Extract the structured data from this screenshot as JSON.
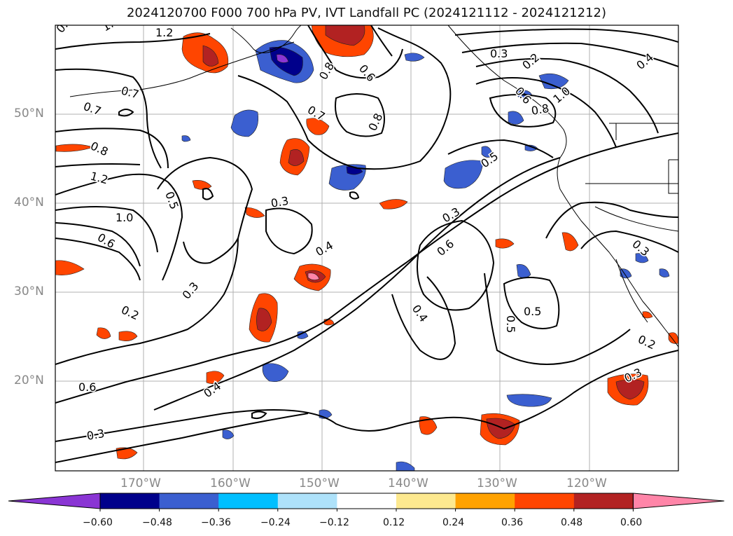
{
  "title": "2024120700 F000 700 hPa PV, IVT Landfall PC (2024121112 - 2024121212)",
  "map": {
    "lat_labels": [
      "50°N",
      "40°N",
      "30°N",
      "20°N"
    ],
    "lon_labels": [
      "170°W",
      "160°W",
      "150°W",
      "140°W",
      "130°W",
      "120°W"
    ],
    "contour_labels": [
      "0.8",
      "1.0",
      "1.2",
      "0.7",
      "0.7",
      "0.8",
      "1.2",
      "1.0",
      "0.6",
      "0.5",
      "0.3",
      "0.3",
      "0.2",
      "0.3",
      "0.4",
      "0.8",
      "0.6",
      "0.7",
      "0.8",
      "0.3",
      "0.5",
      "0.4",
      "0.3",
      "0.6",
      "0.8",
      "1.0",
      "0.5",
      "0.3",
      "0.2",
      "0.4",
      "0.5",
      "0.6",
      "0.3",
      "0.4",
      "0.2",
      "0.6"
    ]
  },
  "colorbar": {
    "colors": [
      "#8a35d4",
      "#00008b",
      "#3b5fd0",
      "#00bfff",
      "#aee2fa",
      "#ffffff",
      "#fde98f",
      "#ffa200",
      "#ff4500",
      "#b22222",
      "#ff85a8"
    ],
    "tick_labels": [
      "−0.60",
      "−0.48",
      "−0.36",
      "−0.24",
      "−0.12",
      "0.12",
      "0.24",
      "0.36",
      "0.48",
      "0.60"
    ]
  }
}
